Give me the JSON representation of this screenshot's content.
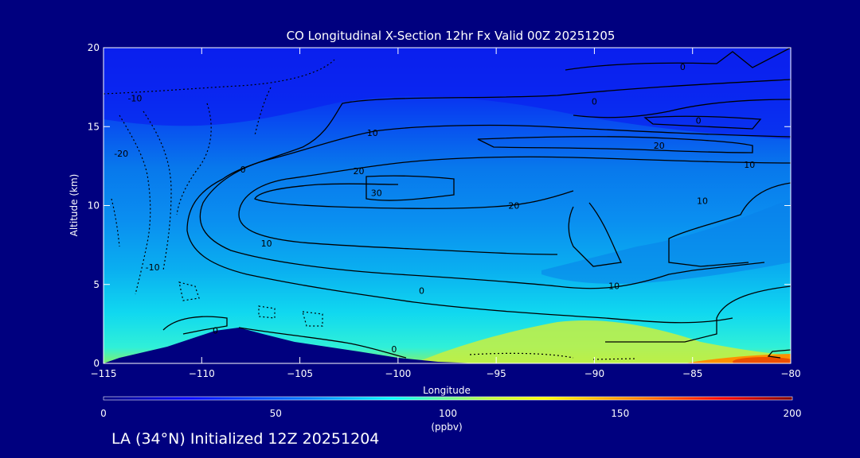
{
  "chart_data": {
    "type": "heatmap",
    "title": "CO Longitudinal X-Section 12hr  Fx Valid 00Z 20251205",
    "xlabel": "Longitude",
    "ylabel": "Altitude (km)",
    "xlim": [
      -115,
      -80
    ],
    "ylim": [
      0,
      20
    ],
    "x_ticks": [
      -115,
      -110,
      -105,
      -100,
      -95,
      -90,
      -85,
      -80
    ],
    "y_ticks": [
      0,
      5,
      10,
      15,
      20
    ],
    "colorbar": {
      "label": "(ppbv)",
      "range": [
        0,
        200
      ],
      "ticks": [
        0,
        50,
        100,
        150,
        200
      ],
      "colors": [
        "#000080",
        "#0000ff",
        "#0080ff",
        "#00ffff",
        "#ffff00",
        "#ff8000",
        "#ff0000",
        "#800000"
      ]
    },
    "field_levels": [
      {
        "altitude_range": [
          18,
          20
        ],
        "approx_value": 12
      },
      {
        "altitude_range": [
          15,
          18
        ],
        "approx_value": 20
      },
      {
        "altitude_range": [
          11,
          15
        ],
        "approx_value": 35
      },
      {
        "altitude_range": [
          6,
          11
        ],
        "approx_value": 45
      },
      {
        "altitude_range": [
          3,
          6
        ],
        "approx_value": 58
      },
      {
        "altitude_range": [
          0.5,
          3
        ],
        "approx_value": 75
      },
      {
        "altitude_range": [
          0,
          0.5
        ],
        "approx_value": 115
      }
    ],
    "contour_labels": [
      {
        "text": "0",
        "x": -85.5,
        "y": 18.8
      },
      {
        "text": "0",
        "x": -90,
        "y": 16.6
      },
      {
        "text": "0",
        "x": -84.7,
        "y": 15.4
      },
      {
        "text": "-10",
        "x": -113.4,
        "y": 16.8
      },
      {
        "text": "-20",
        "x": -114.1,
        "y": 13.3
      },
      {
        "text": "-10",
        "x": -112.5,
        "y": 6.1
      },
      {
        "text": "0",
        "x": -109.3,
        "y": 2.1
      },
      {
        "text": "0",
        "x": -107.9,
        "y": 12.3
      },
      {
        "text": "10",
        "x": -101.3,
        "y": 14.6
      },
      {
        "text": "20",
        "x": -86.7,
        "y": 13.8
      },
      {
        "text": "10",
        "x": -82.1,
        "y": 12.6
      },
      {
        "text": "20",
        "x": -102,
        "y": 12.2
      },
      {
        "text": "30",
        "x": -101.1,
        "y": 10.8
      },
      {
        "text": "20",
        "x": -94.1,
        "y": 10
      },
      {
        "text": "10",
        "x": -84.5,
        "y": 10.3
      },
      {
        "text": "10",
        "x": -106.7,
        "y": 7.6
      },
      {
        "text": "10",
        "x": -89,
        "y": 4.9
      },
      {
        "text": "0",
        "x": -98.8,
        "y": 4.6
      },
      {
        "text": "0",
        "x": -100.2,
        "y": 0.9
      }
    ]
  },
  "footer": "LA (34°N) Initialized 12Z 20251204"
}
